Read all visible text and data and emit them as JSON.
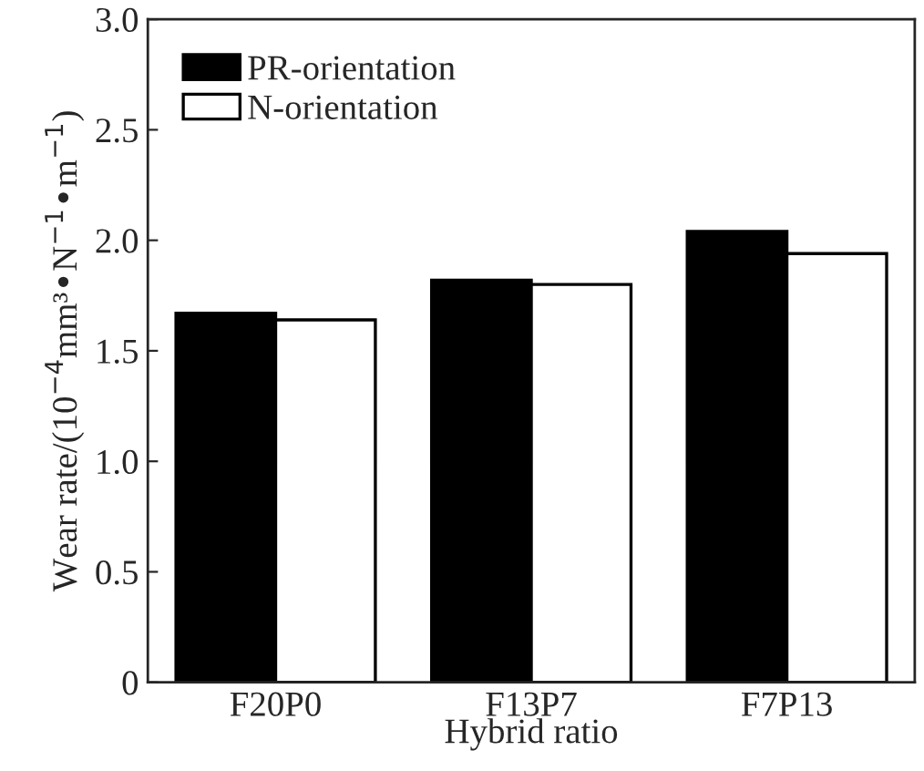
{
  "chart_data": {
    "type": "bar",
    "xlabel": "Hybrid ratio",
    "ylabel": "Wear rate/(10$^{−4}$mm³•N$^{−1}$•m$^{−1}$)",
    "categories": [
      "F20P0",
      "F13P7",
      "F7P13"
    ],
    "series": [
      {
        "name": "PR-orientation",
        "color": "#000000",
        "values": [
          1.67,
          1.82,
          2.04
        ]
      },
      {
        "name": "N-orientation",
        "color": "#ffffff",
        "values": [
          1.64,
          1.8,
          1.94
        ]
      }
    ],
    "ylim": [
      0,
      3.0
    ],
    "yticks": [
      {
        "value": 0,
        "label": "0"
      },
      {
        "value": 0.5,
        "label": "0.5"
      },
      {
        "value": 1.0,
        "label": "1.0"
      },
      {
        "value": 1.5,
        "label": "1.5"
      },
      {
        "value": 2.0,
        "label": "2.0"
      },
      {
        "value": 2.5,
        "label": "2.5"
      },
      {
        "value": 3.0,
        "label": "3.0"
      }
    ],
    "grid": false,
    "legend": "top left"
  }
}
